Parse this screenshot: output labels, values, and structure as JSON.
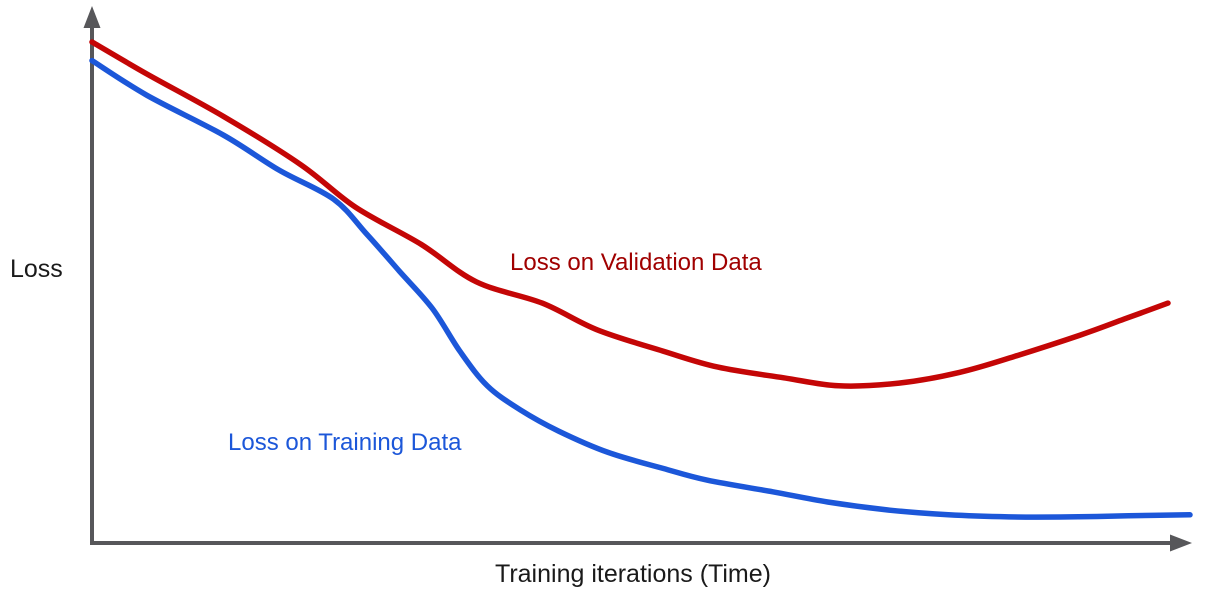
{
  "page": {
    "background": "#ffffff"
  },
  "chart_data": {
    "type": "line",
    "title": "",
    "xlabel": "Training iterations (Time)",
    "ylabel": "Loss",
    "grid": false,
    "legend_position": "inline-labels",
    "axis_color": "#57575a",
    "x_axis": {
      "min": 0,
      "max": 1,
      "tick_labels": []
    },
    "y_axis": {
      "min": 0,
      "max": 1,
      "tick_labels": []
    },
    "series": [
      {
        "name": "Loss on Validation Data",
        "color": "#c40606",
        "label_color": "#a00000",
        "points": [
          [
            0.0,
            0.94
          ],
          [
            0.05,
            0.88
          ],
          [
            0.12,
            0.8
          ],
          [
            0.19,
            0.71
          ],
          [
            0.24,
            0.63
          ],
          [
            0.3,
            0.56
          ],
          [
            0.35,
            0.49
          ],
          [
            0.41,
            0.45
          ],
          [
            0.46,
            0.4
          ],
          [
            0.52,
            0.36
          ],
          [
            0.57,
            0.33
          ],
          [
            0.63,
            0.31
          ],
          [
            0.68,
            0.295
          ],
          [
            0.735,
            0.3
          ],
          [
            0.79,
            0.32
          ],
          [
            0.84,
            0.35
          ],
          [
            0.9,
            0.39
          ],
          [
            0.94,
            0.42
          ],
          [
            0.98,
            0.45
          ]
        ]
      },
      {
        "name": "Loss on Training Data",
        "color": "#1c57d9",
        "label_color": "#1c57d9",
        "points": [
          [
            0.0,
            0.905
          ],
          [
            0.05,
            0.84
          ],
          [
            0.12,
            0.765
          ],
          [
            0.17,
            0.7
          ],
          [
            0.22,
            0.645
          ],
          [
            0.25,
            0.58
          ],
          [
            0.28,
            0.51
          ],
          [
            0.31,
            0.44
          ],
          [
            0.335,
            0.36
          ],
          [
            0.36,
            0.295
          ],
          [
            0.39,
            0.25
          ],
          [
            0.425,
            0.21
          ],
          [
            0.47,
            0.17
          ],
          [
            0.52,
            0.14
          ],
          [
            0.56,
            0.118
          ],
          [
            0.62,
            0.096
          ],
          [
            0.67,
            0.077
          ],
          [
            0.725,
            0.062
          ],
          [
            0.78,
            0.053
          ],
          [
            0.835,
            0.049
          ],
          [
            0.89,
            0.049
          ],
          [
            0.944,
            0.051
          ],
          [
            1.0,
            0.053
          ]
        ]
      }
    ]
  }
}
